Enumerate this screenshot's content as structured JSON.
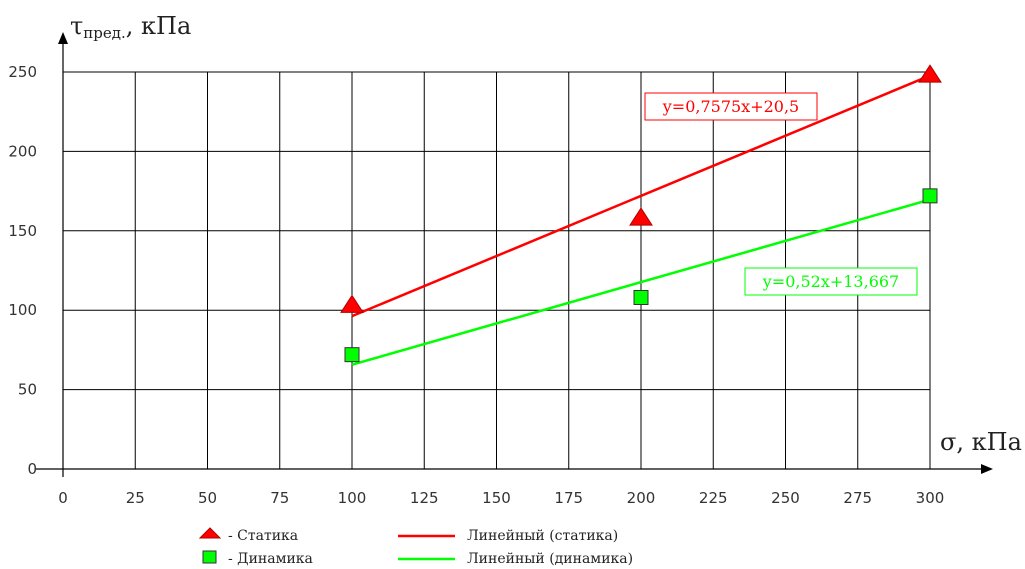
{
  "chart_data": {
    "type": "scatter",
    "xlabel_symbol": "σ",
    "xlabel_unit": ", кПа",
    "ylabel_symbol": "τ",
    "ylabel_sub": "пред.",
    "ylabel_unit": ", кПа",
    "xlim": [
      0,
      300
    ],
    "ylim": [
      0,
      250
    ],
    "x_ticks": [
      0,
      25,
      50,
      75,
      100,
      125,
      150,
      175,
      200,
      225,
      250,
      275,
      300
    ],
    "y_ticks": [
      0,
      50,
      100,
      150,
      200,
      250
    ],
    "grid": true,
    "series": [
      {
        "name": "- Статика",
        "marker": "triangle",
        "color": "#ff0000",
        "points": [
          {
            "x": 100,
            "y": 103
          },
          {
            "x": 200,
            "y": 158
          },
          {
            "x": 300,
            "y": 248
          }
        ]
      },
      {
        "name": "- Динамика",
        "marker": "square",
        "color": "#00ff00",
        "points": [
          {
            "x": 100,
            "y": 72
          },
          {
            "x": 200,
            "y": 108
          },
          {
            "x": 300,
            "y": 172
          }
        ]
      }
    ],
    "trendlines": [
      {
        "name": "Линейный (статика)",
        "color": "#ff0000",
        "slope": 0.7575,
        "intercept": 20.5,
        "x_range": [
          100,
          300
        ],
        "equation": "y=0,7575x+20,5"
      },
      {
        "name": "Линейный (динамика)",
        "color": "#00ff00",
        "slope": 0.52,
        "intercept": 13.667,
        "x_range": [
          100,
          300
        ],
        "equation": "y=0,52x+13,667"
      }
    ],
    "legend_position": "bottom-left"
  }
}
